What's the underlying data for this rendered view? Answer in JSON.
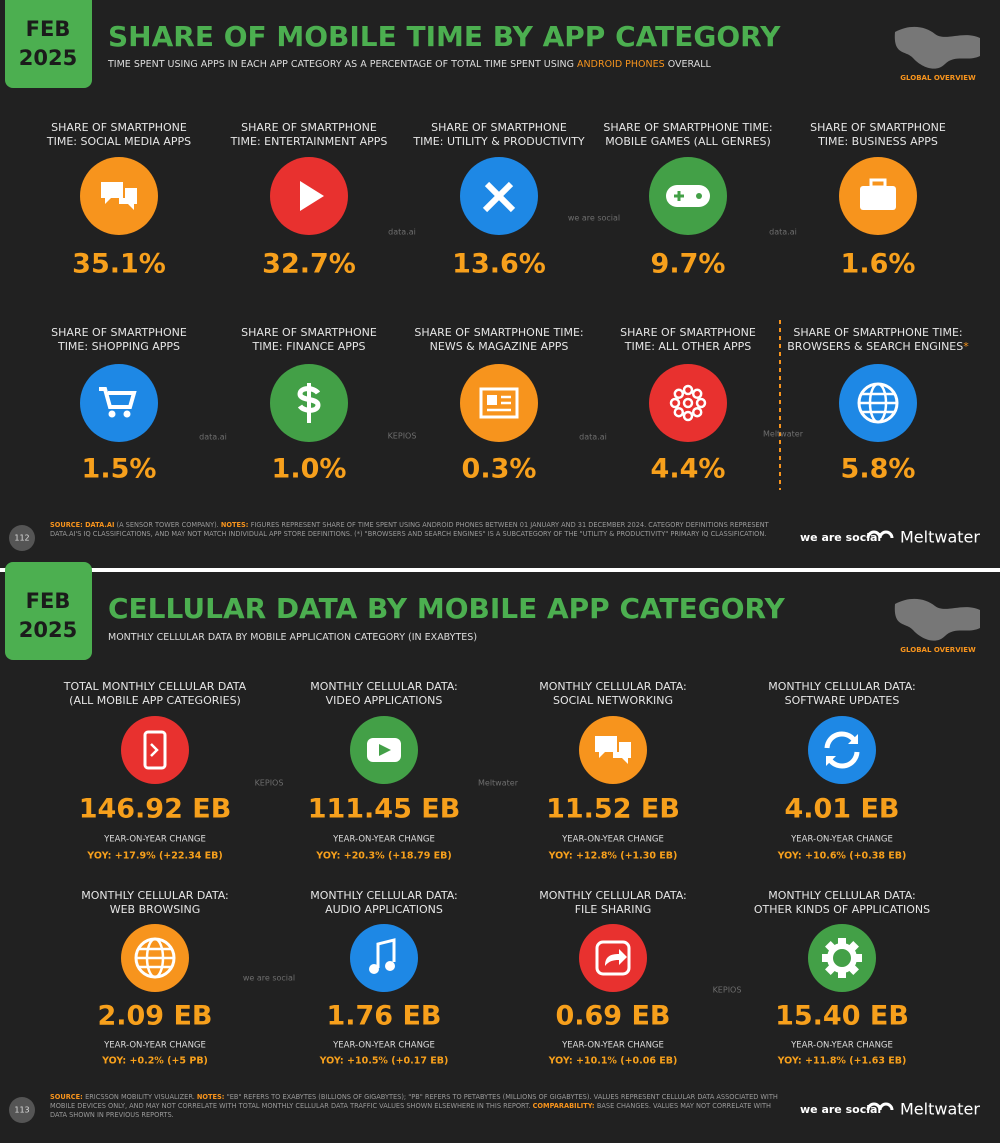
{
  "slides": [
    {
      "date_month": "FEB",
      "date_year": "2025",
      "title": "SHARE OF MOBILE TIME BY APP CATEGORY",
      "subtitle": [
        "TIME SPENT USING APPS IN EACH APP CATEGORY AS A PERCENTAGE OF TOTAL TIME SPENT USING ",
        "ANDROID PHONES",
        " OVERALL"
      ],
      "region": "GLOBAL OVERVIEW",
      "items": [
        {
          "label": [
            "SHARE OF SMARTPHONE",
            "TIME: SOCIAL MEDIA APPS"
          ],
          "value": "35.1%",
          "color": "#f7941d"
        },
        {
          "label": [
            "SHARE OF SMARTPHONE",
            "TIME: ENTERTAINMENT APPS"
          ],
          "value": "32.7%",
          "color": "#e8312f"
        },
        {
          "label": [
            "SHARE OF SMARTPHONE",
            "TIME: UTILITY & PRODUCTIVITY"
          ],
          "value": "13.6%",
          "color": "#1e88e5"
        },
        {
          "label": [
            "SHARE OF SMARTPHONE TIME:",
            "MOBILE GAMES (ALL GENRES)"
          ],
          "value": "9.7%",
          "color": "#43a047"
        },
        {
          "label": [
            "SHARE OF SMARTPHONE",
            "TIME: BUSINESS APPS"
          ],
          "value": "1.6%",
          "color": "#f7941d"
        },
        {
          "label": [
            "SHARE OF SMARTPHONE",
            "TIME: SHOPPING APPS"
          ],
          "value": "1.5%",
          "color": "#1e88e5"
        },
        {
          "label": [
            "SHARE OF SMARTPHONE",
            "TIME: FINANCE APPS"
          ],
          "value": "1.0%",
          "color": "#43a047"
        },
        {
          "label": [
            "SHARE OF SMARTPHONE TIME:",
            "NEWS & MAGAZINE APPS"
          ],
          "value": "0.3%",
          "color": "#f7941d"
        },
        {
          "label": [
            "SHARE OF SMARTPHONE",
            "TIME: ALL OTHER APPS"
          ],
          "value": "4.4%",
          "color": "#e8312f"
        },
        {
          "label": [
            "SHARE OF SMARTPHONE TIME:",
            "BROWSERS & SEARCH ENGINES"
          ],
          "footnote_mark": "*",
          "value": "5.8%",
          "color": "#1e88e5"
        }
      ],
      "watermarks": [
        "data.ai",
        "we are social",
        "data.ai",
        "data.ai",
        "KEPIOS",
        "data.ai",
        "Meltwater"
      ],
      "footer": [
        {
          "text": "SOURCE: ",
          "highlight": true
        },
        {
          "text": "DATA.AI",
          "highlight": true
        },
        {
          "text": " (A SENSOR TOWER COMPANY). ",
          "highlight": false
        },
        {
          "text": "NOTES: ",
          "highlight": true
        },
        {
          "text": "FIGURES REPRESENT SHARE OF TIME SPENT USING ANDROID PHONES BETWEEN 01 JANUARY AND 31 DECEMBER 2024. CATEGORY DEFINITIONS REPRESENT DATA.AI'S IQ CLASSIFICATIONS, AND MAY NOT MATCH INDIVIDUAL APP STORE DEFINITIONS. (*) \"BROWSERS AND SEARCH ENGINES\" IS A SUBCATEGORY OF THE \"UTILITY & PRODUCTIVITY\" PRIMARY IQ CLASSIFICATION.",
          "highlight": false
        }
      ],
      "page": "112",
      "logo_left": "we are social",
      "logo_right": "Meltwater"
    },
    {
      "date_month": "FEB",
      "date_year": "2025",
      "title": "CELLULAR DATA BY MOBILE APP CATEGORY",
      "subtitle": [
        "MONTHLY CELLULAR DATA BY MOBILE APPLICATION CATEGORY (IN EXABYTES)"
      ],
      "region": "GLOBAL OVERVIEW",
      "items": [
        {
          "label": [
            "TOTAL MONTHLY CELLULAR DATA",
            "(ALL MOBILE APP CATEGORIES)"
          ],
          "value": "146.92 EB",
          "yoy_label": "YEAR-ON-YEAR CHANGE",
          "yoy": "YOY: +17.9% (+22.34 EB)",
          "color": "#e8312f"
        },
        {
          "label": [
            "MONTHLY CELLULAR DATA:",
            "VIDEO APPLICATIONS"
          ],
          "value": "111.45 EB",
          "yoy_label": "YEAR-ON-YEAR CHANGE",
          "yoy": "YOY: +20.3% (+18.79 EB)",
          "color": "#43a047"
        },
        {
          "label": [
            "MONTHLY CELLULAR DATA:",
            "SOCIAL NETWORKING"
          ],
          "value": "11.52 EB",
          "yoy_label": "YEAR-ON-YEAR CHANGE",
          "yoy": "YOY: +12.8% (+1.30 EB)",
          "color": "#f7941d"
        },
        {
          "label": [
            "MONTHLY CELLULAR DATA:",
            "SOFTWARE UPDATES"
          ],
          "value": "4.01 EB",
          "yoy_label": "YEAR-ON-YEAR CHANGE",
          "yoy": "YOY: +10.6% (+0.38 EB)",
          "color": "#1e88e5"
        },
        {
          "label": [
            "MONTHLY CELLULAR DATA:",
            "WEB BROWSING"
          ],
          "value": "2.09 EB",
          "yoy_label": "YEAR-ON-YEAR CHANGE",
          "yoy": "YOY: +0.2% (+5 PB)",
          "color": "#f7941d"
        },
        {
          "label": [
            "MONTHLY CELLULAR DATA:",
            "AUDIO APPLICATIONS"
          ],
          "value": "1.76 EB",
          "yoy_label": "YEAR-ON-YEAR CHANGE",
          "yoy": "YOY: +10.5% (+0.17 EB)",
          "color": "#1e88e5"
        },
        {
          "label": [
            "MONTHLY CELLULAR DATA:",
            "FILE SHARING"
          ],
          "value": "0.69 EB",
          "yoy_label": "YEAR-ON-YEAR CHANGE",
          "yoy": "YOY: +10.1% (+0.06 EB)",
          "color": "#e8312f"
        },
        {
          "label": [
            "MONTHLY CELLULAR DATA:",
            "OTHER KINDS OF APPLICATIONS"
          ],
          "value": "15.40 EB",
          "yoy_label": "YEAR-ON-YEAR CHANGE",
          "yoy": "YOY: +11.8% (+1.63 EB)",
          "color": "#43a047"
        }
      ],
      "watermarks": [
        "KEPIOS",
        "Meltwater",
        "we are social",
        "KEPIOS"
      ],
      "footer": [
        {
          "text": "SOURCE: ",
          "highlight": true
        },
        {
          "text": "ERICSSON MOBILITY VISUALIZER. ",
          "highlight": false
        },
        {
          "text": "NOTES: ",
          "highlight": true
        },
        {
          "text": "\"EB\" REFERS TO EXABYTES (BILLIONS OF GIGABYTES); \"PB\" REFERS TO PETABYTES (MILLIONS OF GIGABYTES). VALUES REPRESENT CELLULAR DATA ASSOCIATED WITH MOBILE DEVICES ONLY, AND MAY NOT CORRELATE WITH TOTAL MONTHLY CELLULAR DATA TRAFFIC VALUES SHOWN ELSEWHERE IN THIS REPORT. ",
          "highlight": false
        },
        {
          "text": "COMPARABILITY: ",
          "highlight": true
        },
        {
          "text": "BASE CHANGES. VALUES MAY NOT CORRELATE WITH DATA SHOWN IN PREVIOUS REPORTS.",
          "highlight": false
        }
      ],
      "page": "113",
      "logo_left": "we are social",
      "logo_right": "Meltwater"
    }
  ]
}
